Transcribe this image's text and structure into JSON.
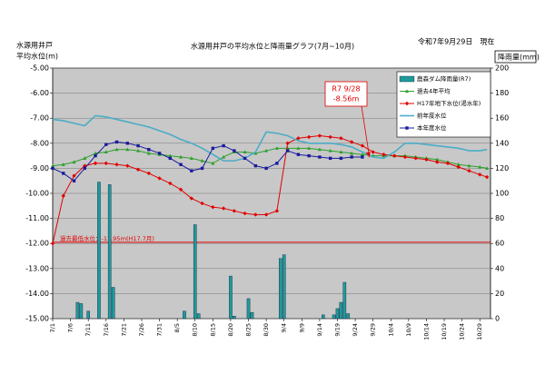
{
  "chart_data": {
    "type": "combo",
    "title": "水源用井戸の平均水位と降雨量グラフ(7月~10月)",
    "date_note": "令和7年9月29日　現在",
    "y_label": [
      "水源用井戸",
      "平均水位(m)"
    ],
    "y2_label": "降雨量(mm)",
    "xlim": [
      0,
      123
    ],
    "xticks": [
      {
        "value": 0,
        "label": "7/1"
      },
      {
        "value": 5,
        "label": "7/6"
      },
      {
        "value": 10,
        "label": "7/11"
      },
      {
        "value": 15,
        "label": "7/16"
      },
      {
        "value": 20,
        "label": "7/21"
      },
      {
        "value": 25,
        "label": "7/26"
      },
      {
        "value": 30,
        "label": "7/31"
      },
      {
        "value": 35,
        "label": "8/5"
      },
      {
        "value": 40,
        "label": "8/10"
      },
      {
        "value": 45,
        "label": "8/15"
      },
      {
        "value": 50,
        "label": "8/20"
      },
      {
        "value": 55,
        "label": "8/25"
      },
      {
        "value": 60,
        "label": "8/30"
      },
      {
        "value": 65,
        "label": "9/4"
      },
      {
        "value": 70,
        "label": "9/9"
      },
      {
        "value": 75,
        "label": "9/14"
      },
      {
        "value": 80,
        "label": "9/19"
      },
      {
        "value": 85,
        "label": "9/24"
      },
      {
        "value": 90,
        "label": "9/29"
      },
      {
        "value": 95,
        "label": "10/4"
      },
      {
        "value": 100,
        "label": "10/9"
      },
      {
        "value": 105,
        "label": "10/14"
      },
      {
        "value": 110,
        "label": "10/19"
      },
      {
        "value": 115,
        "label": "10/24"
      },
      {
        "value": 120,
        "label": "10/29"
      }
    ],
    "ylim": [
      -15,
      -5
    ],
    "yticks": [
      {
        "value": -5,
        "label": "-5.00"
      },
      {
        "value": -6,
        "label": "-6.00"
      },
      {
        "value": -7,
        "label": "-7.00"
      },
      {
        "value": -8,
        "label": "-8.00"
      },
      {
        "value": -9,
        "label": "-9.00"
      },
      {
        "value": -10,
        "label": "-10.00"
      },
      {
        "value": -11,
        "label": "-11.00"
      },
      {
        "value": -12,
        "label": "-12.00"
      },
      {
        "value": -13,
        "label": "-13.00"
      },
      {
        "value": -14,
        "label": "-14.00"
      },
      {
        "value": -15,
        "label": "-15.00"
      }
    ],
    "y2lim": [
      0,
      200
    ],
    "y2ticks": [
      0,
      20,
      40,
      60,
      80,
      100,
      120,
      140,
      160,
      180,
      200
    ],
    "grid": true,
    "x": [
      0,
      3,
      6,
      9,
      12,
      15,
      18,
      21,
      24,
      27,
      30,
      33,
      36,
      39,
      42,
      45,
      48,
      51,
      54,
      57,
      60,
      63,
      66,
      69,
      72,
      75,
      78,
      81,
      84,
      87,
      90,
      93,
      96,
      99,
      102,
      105,
      108,
      111,
      114,
      117,
      120,
      122
    ],
    "series": [
      {
        "name": "鹿森ダム降雨量(R7)",
        "kind": "bar",
        "axis": "y2",
        "color": "#1f9a9a",
        "x": [
          7,
          8,
          10,
          13,
          16,
          17,
          37,
          40,
          41,
          50,
          51,
          55,
          56,
          64,
          65,
          76,
          79,
          80,
          81,
          82,
          83
        ],
        "values": [
          13,
          12,
          6,
          109,
          107,
          25,
          6,
          75,
          4,
          34,
          2,
          16,
          5,
          48,
          51,
          3,
          3,
          8,
          13,
          29,
          4
        ]
      },
      {
        "name": "過去4年平均",
        "kind": "line",
        "marker": "triangle",
        "color": "#2ea02e",
        "values": [
          -8.9,
          -8.85,
          -8.75,
          -8.6,
          -8.4,
          -8.35,
          -8.25,
          -8.25,
          -8.3,
          -8.4,
          -8.45,
          -8.5,
          -8.55,
          -8.6,
          -8.7,
          -8.8,
          -8.55,
          -8.35,
          -8.35,
          -8.4,
          -8.3,
          -8.2,
          -8.2,
          -8.2,
          -8.2,
          -8.25,
          -8.3,
          -8.35,
          -8.4,
          -8.45,
          -8.5,
          -8.5,
          -8.5,
          -8.5,
          -8.55,
          -8.6,
          -8.65,
          -8.75,
          -8.85,
          -8.9,
          -8.95,
          -9.0
        ]
      },
      {
        "name": "H17年地下水位(渇水年)",
        "kind": "line",
        "marker": "diamond",
        "color": "#e00000",
        "values": [
          -12.0,
          -10.1,
          -9.3,
          -8.9,
          -8.8,
          -8.8,
          -8.85,
          -8.9,
          -9.05,
          -9.2,
          -9.4,
          -9.6,
          -9.85,
          -10.2,
          -10.4,
          -10.55,
          -10.6,
          -10.7,
          -10.8,
          -10.85,
          -10.85,
          -10.7,
          -8.0,
          -7.8,
          -7.75,
          -7.7,
          -7.75,
          -7.8,
          -7.95,
          -8.1,
          -8.35,
          -8.45,
          -8.5,
          -8.55,
          -8.6,
          -8.65,
          -8.75,
          -8.8,
          -8.95,
          -9.1,
          -9.25,
          -9.35
        ]
      },
      {
        "name": "前年度水位",
        "kind": "line",
        "marker": "none",
        "color": "#4bacc6",
        "values": [
          -7.05,
          -7.1,
          -7.2,
          -7.3,
          -6.9,
          -6.95,
          -7.05,
          -7.15,
          -7.25,
          -7.35,
          -7.5,
          -7.65,
          -7.85,
          -8.0,
          -8.2,
          -8.45,
          -8.7,
          -8.7,
          -8.6,
          -8.35,
          -7.55,
          -7.6,
          -7.7,
          -7.9,
          -8.0,
          -8.0,
          -8.0,
          -8.05,
          -8.15,
          -8.35,
          -8.55,
          -8.6,
          -8.35,
          -8.0,
          -8.0,
          -8.05,
          -8.1,
          -8.15,
          -8.2,
          -8.3,
          -8.3,
          -8.25
        ]
      },
      {
        "name": "本年度水位",
        "kind": "line",
        "marker": "square",
        "color": "#1a1a9c",
        "values": [
          -9.0,
          -9.2,
          -9.5,
          -9.0,
          -8.5,
          -8.05,
          -7.95,
          -8.0,
          -8.1,
          -8.25,
          -8.4,
          -8.6,
          -8.85,
          -9.1,
          -9.0,
          -8.2,
          -8.1,
          -8.3,
          -8.6,
          -8.9,
          -9.0,
          -8.8,
          -8.3,
          -8.45,
          -8.5,
          -8.55,
          -8.6,
          -8.6,
          -8.55,
          -8.55,
          null,
          null,
          null,
          null,
          null,
          null,
          null,
          null,
          null,
          null,
          null,
          null
        ]
      }
    ],
    "min_line": {
      "value": -11.95,
      "label": "過去最低水位：-11.95ｍ(H17.7月)",
      "color": "#e00000"
    },
    "callout": {
      "x": 89,
      "y": -8.56,
      "lines": [
        "R7  9/28",
        "-8.56m"
      ],
      "color": "#e00000"
    },
    "legend": "top-right"
  }
}
